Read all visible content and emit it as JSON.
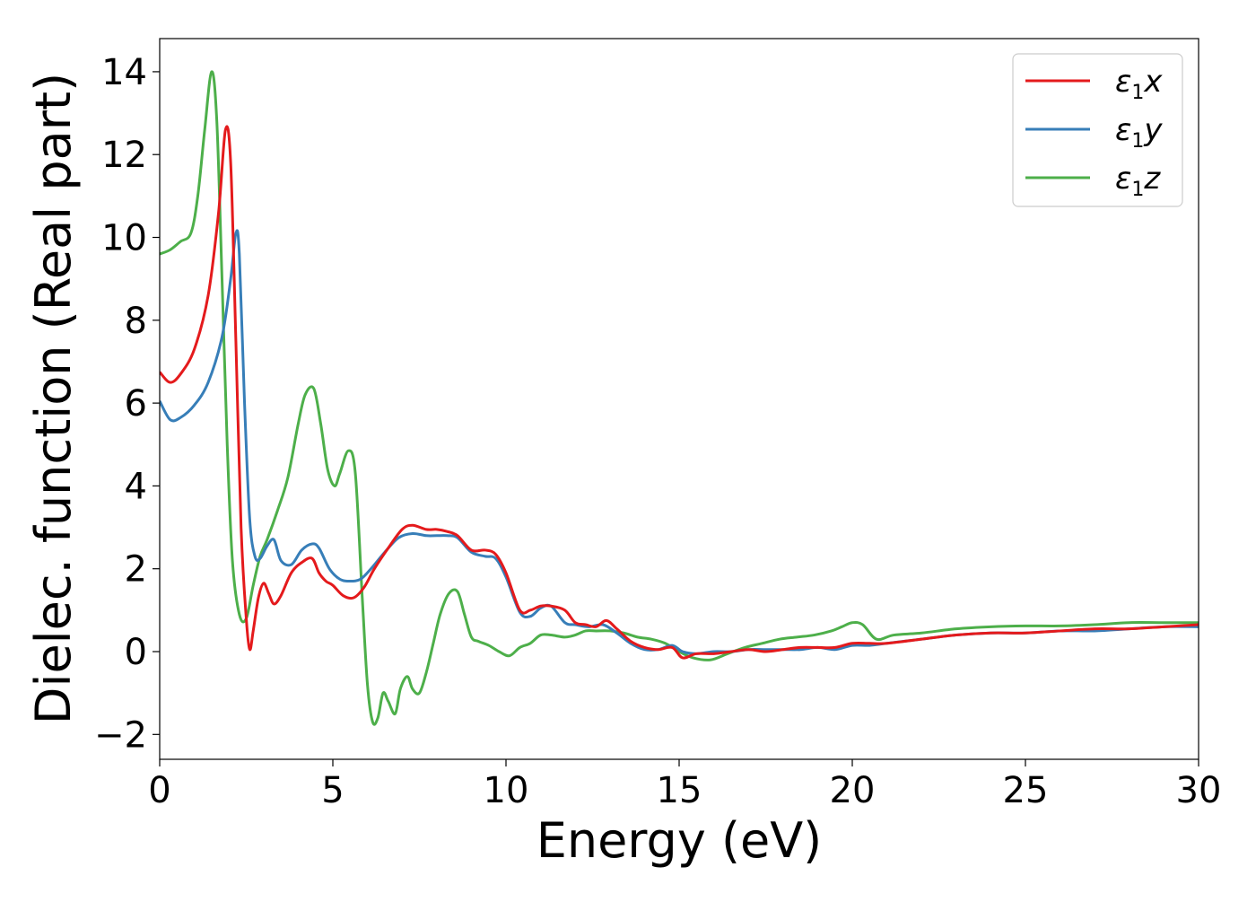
{
  "chart_data": {
    "type": "line",
    "title": "",
    "xlabel": "Energy (eV)",
    "ylabel": "Dielec. function (Real part)",
    "xlim": [
      0,
      30
    ],
    "ylim": [
      -2.6,
      14.8
    ],
    "x_ticks": [
      0,
      5,
      10,
      15,
      20,
      25,
      30
    ],
    "y_ticks": [
      -2,
      0,
      2,
      4,
      6,
      8,
      10,
      12,
      14
    ],
    "y_tick_labels": [
      "−2",
      "0",
      "2",
      "4",
      "6",
      "8",
      "10",
      "12",
      "14"
    ],
    "x_tick_labels": [
      "0",
      "5",
      "10",
      "15",
      "20",
      "25",
      "30"
    ],
    "grid": false,
    "legend_position": "top-right",
    "series": [
      {
        "name": "ε₁x",
        "color": "#e41a1c",
        "x": [
          0,
          0.3,
          0.6,
          1.0,
          1.4,
          1.7,
          1.9,
          2.05,
          2.2,
          2.35,
          2.5,
          2.6,
          2.7,
          2.85,
          3.0,
          3.15,
          3.3,
          3.5,
          3.8,
          4.1,
          4.4,
          4.6,
          4.8,
          5.0,
          5.3,
          5.6,
          5.9,
          6.2,
          6.6,
          7.0,
          7.3,
          7.7,
          8.0,
          8.3,
          8.6,
          9.0,
          9.4,
          9.7,
          10.0,
          10.4,
          10.7,
          11.0,
          11.3,
          11.7,
          12.0,
          12.3,
          12.6,
          12.9,
          13.2,
          13.6,
          14.0,
          14.4,
          14.8,
          15.1,
          15.5,
          16.0,
          16.5,
          17.0,
          17.5,
          18.0,
          18.5,
          19.0,
          19.5,
          20.0,
          20.5,
          21.0,
          22.0,
          23.0,
          24.0,
          25.0,
          26.0,
          27.0,
          28.0,
          29.0,
          30.0
        ],
        "y": [
          6.75,
          6.5,
          6.7,
          7.3,
          8.6,
          10.6,
          12.6,
          11.8,
          7.5,
          3.0,
          0.8,
          0.05,
          0.5,
          1.3,
          1.65,
          1.4,
          1.15,
          1.35,
          1.9,
          2.15,
          2.25,
          1.9,
          1.7,
          1.6,
          1.35,
          1.3,
          1.55,
          2.0,
          2.5,
          2.95,
          3.05,
          2.95,
          2.95,
          2.9,
          2.8,
          2.45,
          2.45,
          2.35,
          1.9,
          1.0,
          1.0,
          1.1,
          1.1,
          1.0,
          0.7,
          0.65,
          0.6,
          0.75,
          0.55,
          0.25,
          0.1,
          0.05,
          0.1,
          -0.15,
          -0.05,
          -0.05,
          0.0,
          0.05,
          0.0,
          0.05,
          0.1,
          0.1,
          0.1,
          0.2,
          0.2,
          0.2,
          0.3,
          0.4,
          0.45,
          0.45,
          0.5,
          0.55,
          0.55,
          0.6,
          0.65
        ]
      },
      {
        "name": "ε₁y",
        "color": "#377eb8",
        "x": [
          0,
          0.3,
          0.6,
          1.0,
          1.4,
          1.8,
          2.05,
          2.2,
          2.3,
          2.45,
          2.6,
          2.75,
          2.9,
          3.1,
          3.3,
          3.5,
          3.8,
          4.1,
          4.4,
          4.6,
          4.9,
          5.2,
          5.5,
          5.8,
          6.1,
          6.5,
          6.9,
          7.3,
          7.7,
          8.0,
          8.3,
          8.6,
          9.0,
          9.4,
          9.7,
          10.0,
          10.4,
          10.7,
          11.0,
          11.3,
          11.7,
          12.0,
          12.4,
          12.8,
          13.2,
          13.6,
          14.0,
          14.4,
          14.8,
          15.1,
          15.5,
          16.0,
          16.5,
          17.0,
          17.5,
          18.0,
          18.5,
          19.0,
          19.5,
          20.0,
          20.5,
          21.0,
          22.0,
          23.0,
          24.0,
          25.0,
          26.0,
          27.0,
          28.0,
          29.0,
          30.0
        ],
        "y": [
          6.05,
          5.6,
          5.65,
          5.95,
          6.5,
          7.6,
          9.0,
          10.1,
          9.6,
          6.0,
          3.2,
          2.3,
          2.25,
          2.55,
          2.7,
          2.2,
          2.1,
          2.45,
          2.6,
          2.5,
          2.0,
          1.75,
          1.7,
          1.75,
          2.0,
          2.4,
          2.75,
          2.85,
          2.8,
          2.8,
          2.8,
          2.75,
          2.4,
          2.3,
          2.25,
          1.8,
          0.95,
          0.85,
          1.05,
          1.1,
          0.7,
          0.65,
          0.6,
          0.65,
          0.45,
          0.2,
          0.05,
          0.05,
          0.15,
          0.0,
          -0.05,
          0.0,
          0.0,
          0.05,
          0.05,
          0.05,
          0.05,
          0.1,
          0.05,
          0.15,
          0.15,
          0.2,
          0.3,
          0.4,
          0.45,
          0.45,
          0.5,
          0.5,
          0.55,
          0.6,
          0.6
        ]
      },
      {
        "name": "ε₁z",
        "color": "#4daf4a",
        "x": [
          0,
          0.3,
          0.6,
          0.9,
          1.1,
          1.3,
          1.5,
          1.65,
          1.8,
          1.95,
          2.1,
          2.3,
          2.5,
          2.7,
          2.9,
          3.1,
          3.4,
          3.7,
          4.0,
          4.2,
          4.45,
          4.65,
          4.85,
          5.05,
          5.2,
          5.45,
          5.65,
          5.85,
          6.0,
          6.15,
          6.3,
          6.45,
          6.6,
          6.8,
          6.95,
          7.15,
          7.3,
          7.5,
          7.7,
          7.9,
          8.1,
          8.35,
          8.6,
          8.8,
          9.0,
          9.2,
          9.5,
          9.8,
          10.1,
          10.4,
          10.7,
          11.0,
          11.3,
          11.7,
          12.0,
          12.3,
          12.6,
          13.0,
          13.4,
          13.8,
          14.2,
          14.6,
          15.0,
          15.4,
          15.9,
          16.4,
          16.9,
          17.4,
          17.9,
          18.4,
          18.9,
          19.4,
          19.7,
          20.0,
          20.3,
          20.7,
          21.2,
          22.0,
          23.0,
          24.0,
          25.0,
          26.0,
          27.0,
          28.0,
          29.0,
          30.0
        ],
        "y": [
          9.6,
          9.7,
          9.9,
          10.1,
          11.0,
          12.6,
          14.0,
          12.8,
          9.0,
          5.0,
          2.2,
          0.9,
          0.8,
          1.6,
          2.3,
          2.7,
          3.4,
          4.2,
          5.5,
          6.2,
          6.35,
          5.5,
          4.4,
          4.0,
          4.3,
          4.85,
          4.3,
          1.3,
          -0.8,
          -1.7,
          -1.6,
          -1.0,
          -1.2,
          -1.5,
          -0.9,
          -0.6,
          -0.9,
          -1.0,
          -0.5,
          0.2,
          0.9,
          1.4,
          1.45,
          0.9,
          0.35,
          0.25,
          0.15,
          0.0,
          -0.1,
          0.1,
          0.2,
          0.4,
          0.4,
          0.35,
          0.4,
          0.5,
          0.5,
          0.5,
          0.45,
          0.35,
          0.3,
          0.2,
          0.0,
          -0.15,
          -0.2,
          -0.05,
          0.1,
          0.2,
          0.3,
          0.35,
          0.4,
          0.5,
          0.6,
          0.7,
          0.65,
          0.3,
          0.4,
          0.45,
          0.55,
          0.6,
          0.62,
          0.62,
          0.65,
          0.7,
          0.7,
          0.7
        ]
      }
    ]
  }
}
